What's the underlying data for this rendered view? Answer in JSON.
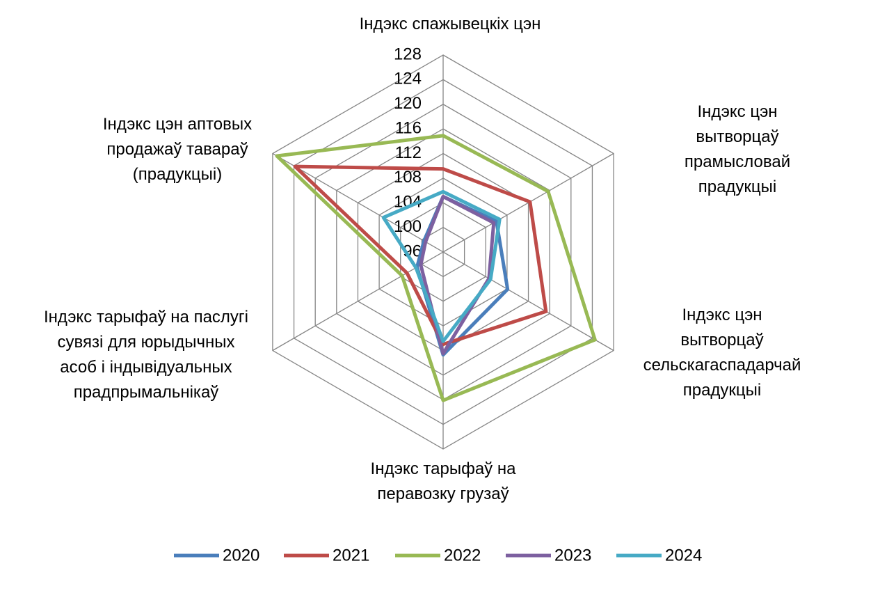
{
  "chart_data": {
    "type": "radar",
    "categories": [
      "Індэкс спажывецкіх цэн",
      "Індэкс цэн вытворцаў\nпрамысловай прадукцыі",
      "Індэкс цэн вытворцаў\nсельскагаспадарчай\nпрадукцыі",
      "Індэкс тарыфаў на\nперавозку грузаў",
      "Індэкс тарыфаў на паслугі\nсувязі для юрыдычных\nасоб і індывідуальных\nпрадпрымальнікаў",
      "Індэкс цэн аптовых\nпродажаў тавараў\n(прадукцыі)"
    ],
    "ylim": [
      96,
      128
    ],
    "yticks": [
      96,
      100,
      104,
      108,
      112,
      116,
      120,
      124,
      128
    ],
    "grid": true,
    "legend": "bottom",
    "series": [
      {
        "name": "2020",
        "color": "#4a7ebb",
        "values": [
          105,
          106,
          108.1,
          112.7,
          100.9,
          99.6
        ]
      },
      {
        "name": "2021",
        "color": "#be4b48",
        "values": [
          109.5,
          112.3,
          115.3,
          111,
          102.8,
          123.8
        ]
      },
      {
        "name": "2022",
        "color": "#98b954",
        "values": [
          114.9,
          115.7,
          124.5,
          120.1,
          103.7,
          127.2
        ]
      },
      {
        "name": "2023",
        "color": "#7d60a0",
        "values": [
          105,
          105.5,
          104.6,
          112.5,
          100.2,
          99.3
        ]
      },
      {
        "name": "2024",
        "color": "#46aac5",
        "values": [
          105.8,
          106.6,
          104.9,
          110.5,
          101.1,
          107.2
        ]
      }
    ]
  }
}
